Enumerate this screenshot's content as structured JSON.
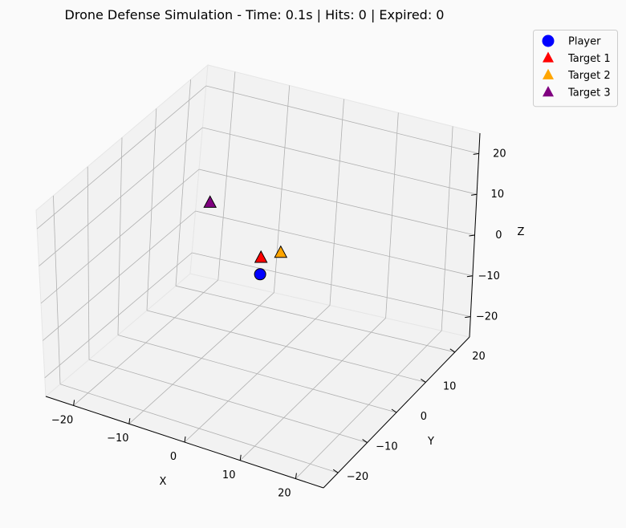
{
  "chart_data": {
    "type": "scatter",
    "projection": "3d",
    "title": "Drone Defense Simulation - Time: 0.1s | Hits: 0 | Expired: 0",
    "xlabel": "X",
    "ylabel": "Y",
    "zlabel": "Z",
    "xlim": [
      -25,
      25
    ],
    "ylim": [
      -25,
      25
    ],
    "zlim": [
      -25,
      25
    ],
    "x_ticks": [
      -20,
      -10,
      0,
      10,
      20
    ],
    "y_ticks": [
      -20,
      -10,
      0,
      10,
      20
    ],
    "z_ticks": [
      -20,
      -10,
      0,
      10,
      20
    ],
    "x_tick_labels": [
      "−20",
      "−10",
      "0",
      "10",
      "20"
    ],
    "y_tick_labels": [
      "−20",
      "−10",
      "0",
      "10",
      "20"
    ],
    "z_tick_labels": [
      "−20",
      "−10",
      "0",
      "10",
      "20"
    ],
    "grid": true,
    "legend_position": "upper-right-outside",
    "series": [
      {
        "name": "Player",
        "marker": "circle",
        "color": "#0000ff",
        "points": [
          [
            0,
            0,
            0
          ]
        ]
      },
      {
        "name": "Target 1",
        "marker": "triangle",
        "color": "#ff0000",
        "points": [
          [
            -0.3,
            0.7,
            3.5
          ]
        ]
      },
      {
        "name": "Target 2",
        "marker": "triangle",
        "color": "#ffa500",
        "points": [
          [
            2.1,
            2.7,
            4.2
          ]
        ]
      },
      {
        "name": "Target 3",
        "marker": "triangle",
        "color": "#800080",
        "points": [
          [
            -10.2,
            1.8,
            12.8
          ]
        ]
      }
    ]
  }
}
